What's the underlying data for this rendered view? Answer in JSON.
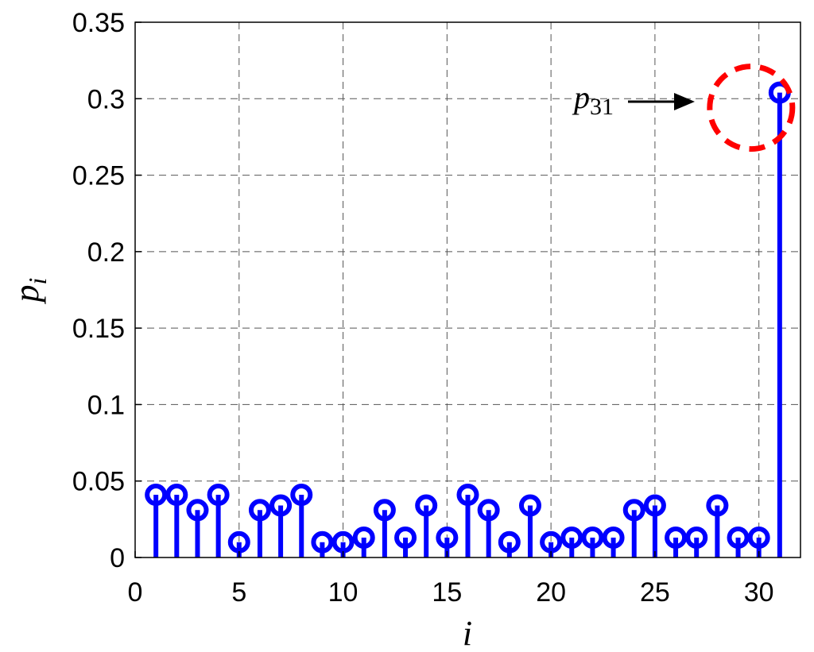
{
  "chart_data": {
    "type": "stem",
    "xlabel": "i",
    "ylabel": "p",
    "ylabel_subscript": "i",
    "xlim": [
      0,
      32
    ],
    "ylim": [
      0,
      0.35
    ],
    "xticks": [
      0,
      5,
      10,
      15,
      20,
      25,
      30
    ],
    "xtick_labels": [
      "0",
      "5",
      "10",
      "15",
      "20",
      "25",
      "30"
    ],
    "yticks": [
      0,
      0.05,
      0.1,
      0.15,
      0.2,
      0.25,
      0.3,
      0.35
    ],
    "ytick_labels": [
      "0",
      "0.05",
      "0.1",
      "0.15",
      "0.2",
      "0.25",
      "0.3",
      "0.35"
    ],
    "grid": true,
    "series": [
      {
        "color": "#0000ff",
        "x": [
          1,
          2,
          3,
          4,
          5,
          6,
          7,
          8,
          9,
          10,
          11,
          12,
          13,
          14,
          15,
          16,
          17,
          18,
          19,
          20,
          21,
          22,
          23,
          24,
          25,
          26,
          27,
          28,
          29,
          30,
          31
        ],
        "y": [
          0.041,
          0.041,
          0.031,
          0.041,
          0.01,
          0.031,
          0.034,
          0.041,
          0.01,
          0.01,
          0.013,
          0.031,
          0.013,
          0.034,
          0.013,
          0.041,
          0.031,
          0.01,
          0.034,
          0.01,
          0.013,
          0.013,
          0.013,
          0.031,
          0.034,
          0.013,
          0.013,
          0.034,
          0.013,
          0.013,
          0.304
        ]
      }
    ],
    "annotation": {
      "text": "p",
      "subscript": "31",
      "target_x": 31,
      "target_y": 0.304,
      "arrow_color": "#000000",
      "circle_color": "#ff0000"
    }
  }
}
